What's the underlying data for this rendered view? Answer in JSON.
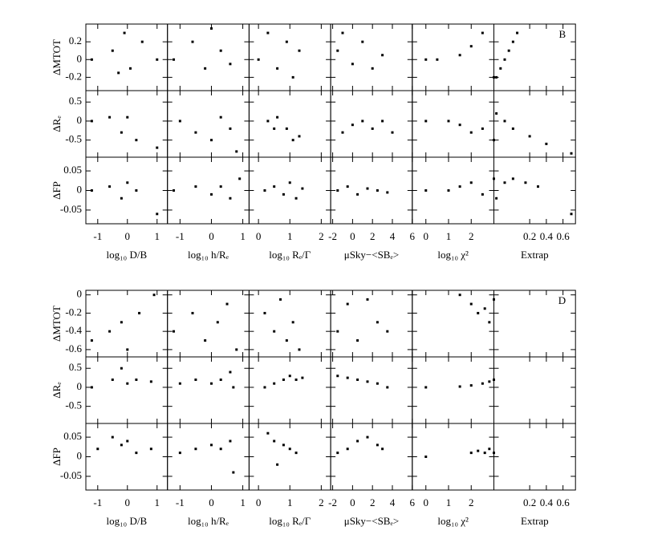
{
  "chart_data": [
    {
      "type": "scatter",
      "label": "B",
      "rows": [
        {
          "label": "ΔMTOT",
          "ylim": [
            -0.35,
            0.4
          ],
          "yticks": [
            -0.2,
            0,
            0.2
          ]
        },
        {
          "label": "ΔRₑ",
          "ylim": [
            -0.95,
            0.8
          ],
          "yticks": [
            -0.5,
            0,
            0.5
          ]
        },
        {
          "label": "ΔFP",
          "ylim": [
            -0.085,
            0.085
          ],
          "yticks": [
            -0.05,
            0,
            0.05
          ]
        }
      ],
      "columns": [
        {
          "label": "log₁₀ D/B",
          "xlim": [
            -1.4,
            1.35
          ],
          "xticks": [
            -1,
            0,
            1
          ]
        },
        {
          "label": "log₁₀ h/Rₑ",
          "xlim": [
            -1.4,
            1.2
          ],
          "xticks": [
            -1,
            0,
            1
          ]
        },
        {
          "label": "log₁₀ Rₑ/Γ",
          "xlim": [
            -0.3,
            2.3
          ],
          "xticks": [
            0,
            1,
            2
          ]
        },
        {
          "label": "μSky−<SBₑ>",
          "xlim": [
            -2.2,
            6
          ],
          "xticks": [
            -2,
            0,
            2,
            4,
            6
          ]
        },
        {
          "label": "log₁₀ χ²",
          "xlim": [
            -0.6,
            3
          ],
          "xticks": [
            0,
            1,
            2
          ]
        },
        {
          "label": "Extrap",
          "xlim": [
            -0.23,
            0.75
          ],
          "xticks": [
            0.2,
            0.4,
            0.6
          ]
        }
      ],
      "panels": [
        [
          {
            "x": [
              -1.2,
              -0.5,
              -0.3,
              -0.1,
              0.1,
              0.5,
              1.0
            ],
            "y": [
              0,
              0.1,
              -0.15,
              0.3,
              -0.1,
              0.2,
              0
            ]
          },
          {
            "x": [
              -1.2,
              -0.6,
              -0.2,
              0,
              0.3,
              0.6
            ],
            "y": [
              0,
              0.2,
              -0.1,
              0.35,
              0.1,
              -0.05
            ]
          },
          {
            "x": [
              0,
              0.3,
              0.6,
              0.9,
              1.1,
              1.3
            ],
            "y": [
              0,
              0.3,
              -0.1,
              0.2,
              -0.2,
              0.1
            ]
          },
          {
            "x": [
              -1.5,
              -1,
              0,
              1,
              2,
              3
            ],
            "y": [
              0.1,
              0.3,
              -0.05,
              0.2,
              -0.1,
              0.05
            ]
          },
          {
            "x": [
              0,
              0.5,
              1.5,
              2,
              2.5,
              3
            ],
            "y": [
              0,
              0,
              0.05,
              0.15,
              0.3,
              -0.2
            ]
          },
          {
            "x": [
              -0.2,
              -0.15,
              -0.1,
              -0.05,
              0,
              0.05
            ],
            "y": [
              -0.2,
              -0.1,
              0,
              0.1,
              0.2,
              0.3
            ]
          }
        ],
        [
          {
            "x": [
              -1.2,
              -0.6,
              -0.2,
              0,
              0.3,
              1.0
            ],
            "y": [
              0,
              0.1,
              -0.3,
              0.1,
              -0.5,
              -0.7
            ]
          },
          {
            "x": [
              -1,
              -0.5,
              0,
              0.3,
              0.6,
              0.8
            ],
            "y": [
              0,
              -0.3,
              -0.5,
              0.1,
              -0.2,
              -0.8
            ]
          },
          {
            "x": [
              0.3,
              0.6,
              0.9,
              1.1,
              1.3,
              0.5
            ],
            "y": [
              0,
              0.1,
              -0.2,
              -0.5,
              -0.4,
              -0.2
            ]
          },
          {
            "x": [
              -1,
              0,
              1,
              2,
              3,
              4
            ],
            "y": [
              -0.3,
              -0.1,
              0,
              -0.2,
              0,
              -0.3
            ]
          },
          {
            "x": [
              0,
              1,
              1.5,
              2,
              2.5,
              3
            ],
            "y": [
              0,
              0,
              -0.1,
              -0.3,
              -0.2,
              -0.5
            ]
          },
          {
            "x": [
              -0.2,
              -0.1,
              0,
              0.2,
              0.4,
              0.7
            ],
            "y": [
              0.2,
              0,
              -0.2,
              -0.4,
              -0.6,
              -0.85
            ]
          }
        ],
        [
          {
            "x": [
              -1.2,
              -0.6,
              -0.2,
              0,
              0.3,
              1.0
            ],
            "y": [
              0,
              0.01,
              -0.02,
              0.02,
              0,
              -0.06
            ]
          },
          {
            "x": [
              -1.2,
              -0.5,
              0,
              0.3,
              0.6,
              0.9
            ],
            "y": [
              0,
              0.01,
              -0.01,
              0.01,
              -0.02,
              0.03
            ]
          },
          {
            "x": [
              0.2,
              0.5,
              0.8,
              1,
              1.2,
              1.4
            ],
            "y": [
              0,
              0.01,
              -0.01,
              0.02,
              -0.02,
              0.005
            ]
          },
          {
            "x": [
              -1.5,
              -0.5,
              0.5,
              1.5,
              2.5,
              3.5
            ],
            "y": [
              0,
              0.01,
              -0.01,
              0.005,
              0,
              -0.005
            ]
          },
          {
            "x": [
              0,
              1,
              1.5,
              2,
              2.5,
              3
            ],
            "y": [
              0,
              0,
              0.01,
              0.02,
              -0.01,
              0.03
            ]
          },
          {
            "x": [
              -0.2,
              -0.1,
              0,
              0.15,
              0.3,
              0.7
            ],
            "y": [
              -0.02,
              0.02,
              0.03,
              0.02,
              0.01,
              -0.06
            ]
          }
        ]
      ]
    },
    {
      "type": "scatter",
      "label": "D",
      "rows": [
        {
          "label": "ΔMTOT",
          "ylim": [
            -0.68,
            0.05
          ],
          "yticks": [
            -0.6,
            -0.4,
            -0.2,
            0
          ]
        },
        {
          "label": "ΔRₑ",
          "ylim": [
            -0.95,
            0.8
          ],
          "yticks": [
            -0.5,
            0,
            0.5
          ]
        },
        {
          "label": "ΔFP",
          "ylim": [
            -0.085,
            0.085
          ],
          "yticks": [
            -0.05,
            0,
            0.05
          ]
        }
      ],
      "columns": [
        {
          "label": "log₁₀ D/B",
          "xlim": [
            -1.4,
            1.35
          ],
          "xticks": [
            -1,
            0,
            1
          ]
        },
        {
          "label": "log₁₀ h/Rₑ",
          "xlim": [
            -1.4,
            1.2
          ],
          "xticks": [
            -1,
            0,
            1
          ]
        },
        {
          "label": "log₁₀ Rₑ/Γ",
          "xlim": [
            -0.3,
            2.3
          ],
          "xticks": [
            0,
            1,
            2
          ]
        },
        {
          "label": "μSky−<SBₑ>",
          "xlim": [
            -2.2,
            6
          ],
          "xticks": [
            -2,
            0,
            2,
            4,
            6
          ]
        },
        {
          "label": "log₁₀ χ²",
          "xlim": [
            -0.6,
            3
          ],
          "xticks": [
            0,
            1,
            2
          ]
        },
        {
          "label": "Extrap",
          "xlim": [
            -0.23,
            0.75
          ],
          "xticks": [
            0.2,
            0.4,
            0.6
          ]
        }
      ],
      "panels": [
        [
          {
            "x": [
              -1.2,
              -0.6,
              -0.2,
              0,
              0.4,
              0.9
            ],
            "y": [
              -0.5,
              -0.4,
              -0.3,
              -0.6,
              -0.2,
              0
            ]
          },
          {
            "x": [
              -1.2,
              -0.6,
              -0.2,
              0.2,
              0.5,
              0.8
            ],
            "y": [
              -0.4,
              -0.2,
              -0.5,
              -0.3,
              -0.1,
              -0.6
            ]
          },
          {
            "x": [
              0.2,
              0.5,
              0.7,
              0.9,
              1.1,
              1.3
            ],
            "y": [
              -0.2,
              -0.4,
              -0.05,
              -0.5,
              -0.3,
              -0.6
            ]
          },
          {
            "x": [
              -1.5,
              -0.5,
              0.5,
              1.5,
              2.5,
              3.5
            ],
            "y": [
              -0.4,
              -0.1,
              -0.5,
              -0.05,
              -0.3,
              -0.4
            ]
          },
          {
            "x": [
              1.5,
              2,
              2.3,
              2.6,
              2.8,
              3
            ],
            "y": [
              0,
              -0.1,
              -0.2,
              -0.15,
              -0.3,
              -0.05
            ]
          },
          {
            "x": [],
            "y": []
          }
        ],
        [
          {
            "x": [
              -1.2,
              -0.5,
              -0.2,
              0,
              0.3,
              0.8
            ],
            "y": [
              0,
              0.2,
              0.5,
              0.1,
              0.2,
              0.15
            ]
          },
          {
            "x": [
              -1,
              -0.5,
              0,
              0.3,
              0.6,
              0.7
            ],
            "y": [
              0.1,
              0.2,
              0.1,
              0.2,
              0.4,
              0
            ]
          },
          {
            "x": [
              0.2,
              0.5,
              0.8,
              1,
              1.2,
              1.4
            ],
            "y": [
              0,
              0.1,
              0.2,
              0.3,
              0.2,
              0.25
            ]
          },
          {
            "x": [
              -1.5,
              -0.5,
              0.5,
              1.5,
              2.5,
              3.5
            ],
            "y": [
              0.3,
              0.25,
              0.2,
              0.15,
              0.1,
              0
            ]
          },
          {
            "x": [
              0,
              1.5,
              2,
              2.5,
              2.8,
              3
            ],
            "y": [
              0,
              0.02,
              0.05,
              0.1,
              0.15,
              0.2
            ]
          },
          {
            "x": [],
            "y": []
          }
        ],
        [
          {
            "x": [
              -1,
              -0.5,
              -0.2,
              0,
              0.3,
              0.8
            ],
            "y": [
              0.02,
              0.05,
              0.03,
              0.04,
              0.01,
              0.02
            ]
          },
          {
            "x": [
              -1,
              -0.5,
              0,
              0.3,
              0.6,
              0.7
            ],
            "y": [
              0.01,
              0.02,
              0.03,
              0.02,
              0.04,
              -0.04
            ]
          },
          {
            "x": [
              0.3,
              0.5,
              0.8,
              1,
              1.2,
              0.6
            ],
            "y": [
              0.06,
              0.04,
              0.03,
              0.02,
              0.01,
              -0.02
            ]
          },
          {
            "x": [
              -1.5,
              -0.5,
              0.5,
              1.5,
              2.5,
              3
            ],
            "y": [
              0.01,
              0.02,
              0.04,
              0.05,
              0.03,
              0.02
            ]
          },
          {
            "x": [
              0,
              2,
              2.3,
              2.6,
              2.8,
              3
            ],
            "y": [
              0,
              0.01,
              0.015,
              0.01,
              0.02,
              0.01
            ]
          },
          {
            "x": [],
            "y": []
          }
        ]
      ]
    }
  ]
}
